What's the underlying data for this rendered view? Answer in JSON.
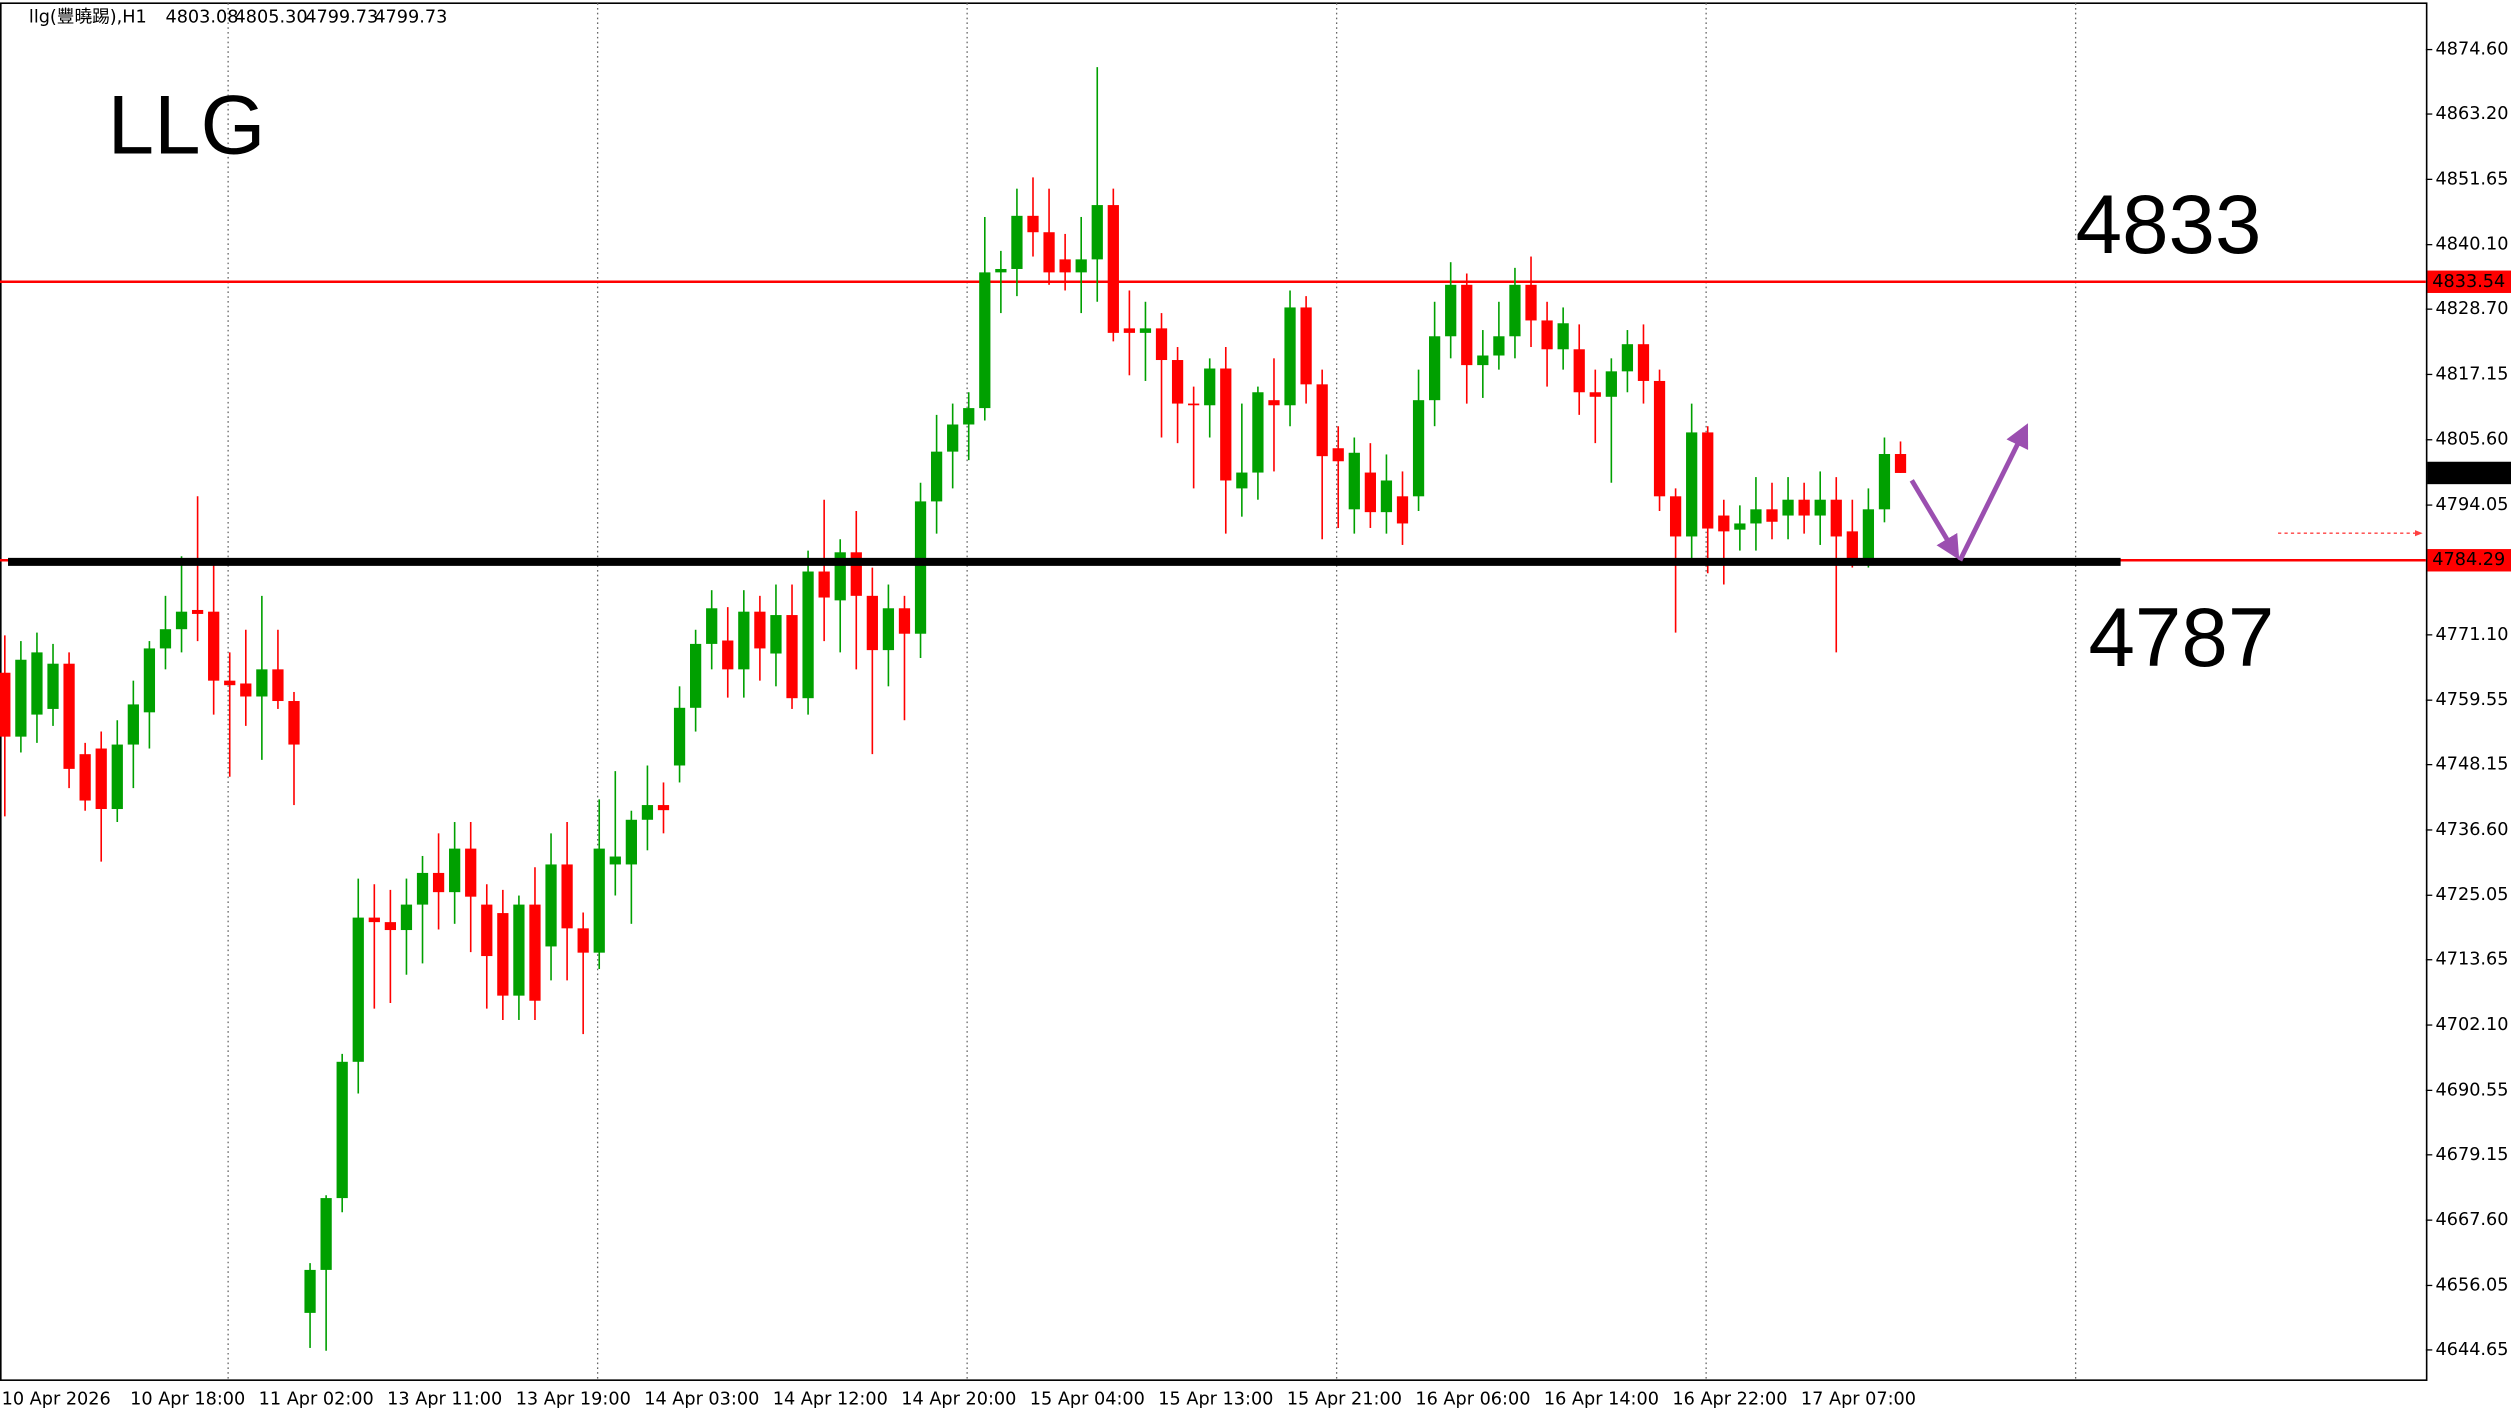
{
  "chart_data": {
    "type": "candlestick",
    "title": "llg(豐曉踢),H1",
    "last_bar_labels": {
      "open": "4803.08",
      "high": "4805.30",
      "low": "4799.73",
      "close": "4799.73"
    },
    "annotations": [
      "LLG",
      "4833",
      "4787"
    ],
    "up_color": "#00a000",
    "down_color": "#ff0000",
    "grid": false,
    "ylim": [
      4639.3,
      4882.8
    ],
    "yticks": [
      {
        "value": 4874.6,
        "label": "4874.60"
      },
      {
        "value": 4863.2,
        "label": "4863.20"
      },
      {
        "value": 4851.65,
        "label": "4851.65"
      },
      {
        "value": 4840.1,
        "label": "4840.10"
      },
      {
        "value": 4828.7,
        "label": "4828.70"
      },
      {
        "value": 4817.15,
        "label": "4817.15"
      },
      {
        "value": 4805.6,
        "label": "4805.60"
      },
      {
        "value": 4794.05,
        "label": "4794.05"
      },
      {
        "value": 4771.1,
        "label": "4771.10"
      },
      {
        "value": 4759.55,
        "label": "4759.55"
      },
      {
        "value": 4748.15,
        "label": "4748.15"
      },
      {
        "value": 4736.6,
        "label": "4736.60"
      },
      {
        "value": 4725.05,
        "label": "4725.05"
      },
      {
        "value": 4713.65,
        "label": "4713.65"
      },
      {
        "value": 4702.1,
        "label": "4702.10"
      },
      {
        "value": 4690.55,
        "label": "4690.55"
      },
      {
        "value": 4679.15,
        "label": "4679.15"
      },
      {
        "value": 4667.6,
        "label": "4667.60"
      },
      {
        "value": 4656.05,
        "label": "4656.05"
      },
      {
        "value": 4644.65,
        "label": "4644.65"
      }
    ],
    "hlines": [
      {
        "value": 4833.54,
        "label": "4833.54",
        "color": "#ff0000"
      },
      {
        "value": 4784.29,
        "label": "4784.29",
        "color": "#ff0000"
      }
    ],
    "support_line": {
      "value": 4784.0,
      "color": "#000000"
    },
    "categories": [
      "10 Apr 2026",
      null,
      null,
      null,
      null,
      null,
      null,
      null,
      "10 Apr 18:00",
      null,
      null,
      null,
      null,
      null,
      null,
      null,
      "11 Apr 02:00",
      null,
      null,
      null,
      null,
      null,
      null,
      null,
      "13 Apr 11:00",
      null,
      null,
      null,
      null,
      null,
      null,
      null,
      "13 Apr 19:00",
      null,
      null,
      null,
      null,
      null,
      null,
      null,
      "14 Apr 03:00",
      null,
      null,
      null,
      null,
      null,
      null,
      null,
      "14 Apr 12:00",
      null,
      null,
      null,
      null,
      null,
      null,
      null,
      "14 Apr 20:00",
      null,
      null,
      null,
      null,
      null,
      null,
      null,
      "15 Apr 04:00",
      null,
      null,
      null,
      null,
      null,
      null,
      null,
      "15 Apr 13:00",
      null,
      null,
      null,
      null,
      null,
      null,
      null,
      "15 Apr 21:00",
      null,
      null,
      null,
      null,
      null,
      null,
      null,
      "16 Apr 06:00",
      null,
      null,
      null,
      null,
      null,
      null,
      null,
      "16 Apr 14:00",
      null,
      null,
      null,
      null,
      null,
      null,
      null,
      "16 Apr 22:00",
      null,
      null,
      null,
      null,
      null,
      null,
      null,
      "17 Apr 07:00",
      null,
      null,
      null,
      null,
      null,
      null
    ],
    "open": [
      4764.4,
      4753.1,
      4757.0,
      4758.0,
      4766.0,
      4750.0,
      4751.0,
      4740.3,
      4751.7,
      4757.4,
      4768.7,
      4772.1,
      4775.5,
      4775.2,
      4763.0,
      4762.5,
      4760.2,
      4765.0,
      4759.4,
      4651.2,
      4658.8,
      4671.5,
      4695.6,
      4721.1,
      4720.3,
      4718.9,
      4723.4,
      4729.0,
      4725.6,
      4733.3,
      4723.4,
      4721.9,
      4707.3,
      4723.4,
      4716.0,
      4730.5,
      4719.2,
      4714.9,
      4730.5,
      4730.5,
      4738.4,
      4741.0,
      4748.0,
      4758.2,
      4769.5,
      4770.1,
      4765.0,
      4775.2,
      4767.8,
      4774.6,
      4759.9,
      4782.3,
      4777.2,
      4785.7,
      4778.0,
      4768.4,
      4775.8,
      4771.3,
      4794.7,
      4803.5,
      4808.3,
      4811.2,
      4835.2,
      4835.8,
      4845.2,
      4842.3,
      4837.5,
      4835.2,
      4837.5,
      4847.1,
      4825.3,
      4824.5,
      4825.3,
      4819.7,
      4812.0,
      4811.7,
      4818.2,
      4797.0,
      4799.8,
      4812.6,
      4811.7,
      4829.0,
      4815.4,
      4804.1,
      4793.3,
      4799.8,
      4792.8,
      4795.6,
      4795.6,
      4812.6,
      4823.9,
      4833.0,
      4818.8,
      4820.5,
      4823.9,
      4833.0,
      4826.7,
      4821.6,
      4821.6,
      4814.0,
      4813.2,
      4817.7,
      4822.5,
      4816.0,
      4795.6,
      4788.5,
      4806.9,
      4792.2,
      4789.7,
      4790.8,
      4793.3,
      4792.2,
      4795.0,
      4792.2,
      4795.0,
      4789.4,
      4784.3,
      4793.3,
      4803.08
    ],
    "high": [
      4771.0,
      4770.0,
      4771.5,
      4769.5,
      4768.0,
      4752.0,
      4754.0,
      4756.0,
      4763.0,
      4770.0,
      4778.0,
      4785.0,
      4795.6,
      4784.0,
      4768.0,
      4772.0,
      4778.0,
      4772.0,
      4761.0,
      4660.0,
      4672.0,
      4697.0,
      4728.0,
      4727.0,
      4726.0,
      4728.0,
      4732.0,
      4736.0,
      4738.0,
      4738.0,
      4727.0,
      4726.0,
      4725.0,
      4730.0,
      4736.0,
      4738.0,
      4722.0,
      4742.0,
      4747.0,
      4740.0,
      4748.0,
      4745.0,
      4762.0,
      4772.0,
      4779.0,
      4776.0,
      4779.0,
      4778.0,
      4780.0,
      4780.0,
      4786.0,
      4795.0,
      4788.0,
      4793.0,
      4783.0,
      4780.0,
      4778.0,
      4798.0,
      4810.0,
      4812.0,
      4814.0,
      4845.0,
      4839.0,
      4850.0,
      4852.0,
      4850.0,
      4842.0,
      4845.0,
      4871.5,
      4850.0,
      4832.0,
      4830.0,
      4828.0,
      4822.0,
      4815.0,
      4820.0,
      4822.0,
      4812.0,
      4815.0,
      4820.0,
      4832.0,
      4831.0,
      4818.0,
      4808.0,
      4806.0,
      4805.0,
      4803.0,
      4800.0,
      4818.0,
      4830.0,
      4837.0,
      4835.0,
      4825.0,
      4830.0,
      4836.0,
      4838.0,
      4830.0,
      4829.0,
      4826.0,
      4818.0,
      4820.0,
      4825.0,
      4826.0,
      4818.0,
      4797.0,
      4812.0,
      4808.0,
      4795.0,
      4794.0,
      4799.0,
      4798.0,
      4799.0,
      4798.0,
      4800.0,
      4799.0,
      4795.0,
      4797.0,
      4806.0,
      4805.3
    ],
    "low": [
      4739.0,
      4750.3,
      4752.0,
      4755.0,
      4744.0,
      4740.0,
      4731.0,
      4738.0,
      4744.0,
      4751.0,
      4765.0,
      4768.0,
      4770.0,
      4757.0,
      4746.0,
      4755.0,
      4749.0,
      4758.0,
      4741.0,
      4645.0,
      4644.5,
      4669.0,
      4690.0,
      4705.0,
      4706.0,
      4711.0,
      4713.0,
      4719.0,
      4720.0,
      4715.0,
      4705.0,
      4703.0,
      4703.0,
      4703.0,
      4710.0,
      4710.0,
      4700.5,
      4712.0,
      4725.0,
      4720.0,
      4733.0,
      4736.0,
      4745.0,
      4754.0,
      4765.0,
      4760.0,
      4760.0,
      4763.0,
      4762.0,
      4758.0,
      4757.0,
      4770.0,
      4768.0,
      4765.0,
      4750.0,
      4762.0,
      4756.0,
      4767.0,
      4789.0,
      4797.0,
      4802.0,
      4809.0,
      4828.0,
      4831.0,
      4838.0,
      4833.0,
      4832.0,
      4828.0,
      4830.0,
      4823.0,
      4817.0,
      4816.0,
      4806.0,
      4805.0,
      4797.0,
      4806.0,
      4789.0,
      4792.0,
      4795.0,
      4800.0,
      4808.0,
      4812.0,
      4788.0,
      4790.0,
      4789.0,
      4790.0,
      4789.0,
      4787.0,
      4793.0,
      4808.0,
      4820.0,
      4812.0,
      4813.0,
      4818.0,
      4820.0,
      4822.0,
      4815.0,
      4818.0,
      4810.0,
      4805.0,
      4798.0,
      4814.0,
      4812.0,
      4793.0,
      4771.5,
      4784.0,
      4782.0,
      4780.0,
      4786.0,
      4786.0,
      4788.0,
      4788.0,
      4789.0,
      4787.0,
      4768.0,
      4783.0,
      4783.0,
      4791.0,
      4799.73
    ],
    "close": [
      4753.1,
      4766.7,
      4768.0,
      4766.0,
      4747.4,
      4741.8,
      4740.3,
      4751.7,
      4758.8,
      4768.7,
      4772.1,
      4775.2,
      4774.8,
      4763.0,
      4762.2,
      4760.2,
      4765.0,
      4759.4,
      4751.7,
      4658.8,
      4671.5,
      4695.6,
      4721.1,
      4720.3,
      4718.9,
      4723.4,
      4729.0,
      4725.6,
      4733.3,
      4724.8,
      4714.3,
      4707.3,
      4723.4,
      4706.4,
      4730.5,
      4719.2,
      4714.9,
      4733.3,
      4731.9,
      4738.4,
      4741.0,
      4740.1,
      4758.2,
      4769.5,
      4775.8,
      4765.0,
      4775.2,
      4768.7,
      4774.6,
      4759.9,
      4782.3,
      4777.7,
      4785.7,
      4778.0,
      4768.4,
      4775.8,
      4771.3,
      4794.7,
      4803.5,
      4808.3,
      4811.2,
      4835.2,
      4835.8,
      4845.2,
      4842.3,
      4835.2,
      4835.2,
      4837.5,
      4847.1,
      4824.5,
      4824.5,
      4825.3,
      4819.7,
      4812.0,
      4811.7,
      4818.2,
      4798.4,
      4799.8,
      4814.0,
      4811.7,
      4829.0,
      4815.4,
      4802.7,
      4801.8,
      4803.3,
      4792.8,
      4798.4,
      4790.8,
      4812.6,
      4823.9,
      4833.0,
      4818.8,
      4820.5,
      4823.9,
      4833.0,
      4826.7,
      4821.6,
      4826.2,
      4814.0,
      4813.2,
      4817.7,
      4822.5,
      4816.0,
      4795.6,
      4788.5,
      4806.9,
      4789.9,
      4789.4,
      4790.8,
      4793.3,
      4791.1,
      4795.0,
      4792.2,
      4795.0,
      4788.5,
      4784.3,
      4793.3,
      4803.08,
      4799.73
    ]
  }
}
